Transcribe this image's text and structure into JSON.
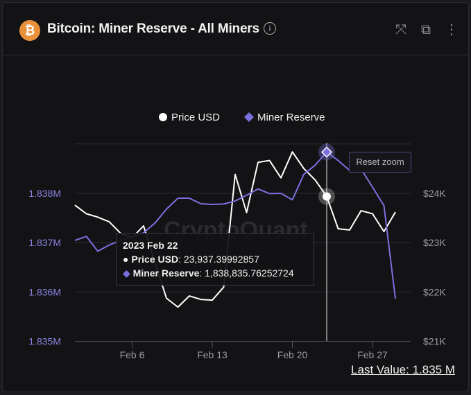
{
  "header": {
    "title": "Bitcoin: Miner Reserve - All Miners",
    "icons": [
      "bitcoin-icon",
      "info-icon",
      "fullscreen-icon",
      "open-external-icon",
      "more-vert-icon"
    ]
  },
  "reset_zoom_label": "Reset zoom",
  "last_value": "Last Value: 1.835 M",
  "watermark": "CryptoQuant",
  "tooltip": {
    "date": "2023 Feb 22",
    "price_label": "Price USD",
    "price_value": "23,937.39992857",
    "reserve_label": "Miner Reserve",
    "reserve_value": "1,838,835.76252724"
  },
  "chart_data": {
    "type": "line",
    "title": "Bitcoin: Miner Reserve - All Miners",
    "legend": [
      "Price USD",
      "Miner Reserve"
    ],
    "legend_position": "top",
    "grid": true,
    "x_ticks": [
      "Feb 6",
      "Feb 13",
      "Feb 20",
      "Feb 27"
    ],
    "x": [
      "Jan 31",
      "Feb 1",
      "Feb 2",
      "Feb 3",
      "Feb 4",
      "Feb 5",
      "Feb 6",
      "Feb 7",
      "Feb 8",
      "Feb 9",
      "Feb 10",
      "Feb 11",
      "Feb 12",
      "Feb 13",
      "Feb 14",
      "Feb 15",
      "Feb 16",
      "Feb 17",
      "Feb 18",
      "Feb 19",
      "Feb 20",
      "Feb 21",
      "Feb 22",
      "Feb 23",
      "Feb 24",
      "Feb 25",
      "Feb 26",
      "Feb 27",
      "Feb 28"
    ],
    "left_axis": {
      "ticks": [
        "1.835M",
        "1.836M",
        "1.837M",
        "1.838M"
      ],
      "range": [
        1835000,
        1839000
      ]
    },
    "right_axis": {
      "ticks": [
        "$21K",
        "$22K",
        "$23K",
        "$24K"
      ],
      "range": [
        21000,
        25000
      ]
    },
    "series": [
      {
        "name": "Price USD",
        "axis": "right",
        "color": "#ffffff",
        "values": [
          23761,
          23587,
          23517,
          23423,
          23188,
          23100,
          23340,
          22600,
          21874,
          21695,
          21921,
          21850,
          21836,
          22100,
          24385,
          23610,
          24629,
          24666,
          24314,
          24840,
          24503,
          24268,
          23937,
          23282,
          23258,
          23648,
          23587,
          23226,
          23620
        ]
      },
      {
        "name": "Miner Reserve",
        "axis": "left",
        "color": "#7b70e0",
        "values": [
          1837046,
          1837127,
          1836827,
          1836953,
          1837046,
          1837120,
          1837200,
          1837400,
          1837680,
          1837901,
          1837901,
          1837789,
          1837775,
          1837784,
          1837845,
          1837962,
          1838089,
          1837995,
          1838000,
          1837869,
          1838385,
          1838573,
          1838836,
          1838666,
          1838465,
          1838493,
          1838127,
          1837751,
          1835863
        ]
      }
    ],
    "highlight_index": 22
  }
}
